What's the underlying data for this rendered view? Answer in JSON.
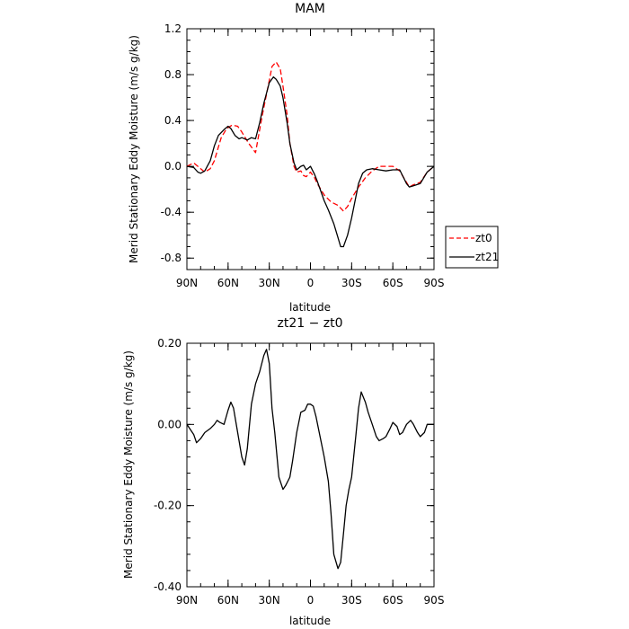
{
  "chart_data": [
    {
      "type": "line",
      "title": "MAM",
      "xlabel": "latitude",
      "ylabel": "Merid Stationary Eddy Moisture (m/s g/kg)",
      "xlim": [
        90,
        -90
      ],
      "ylim": [
        -0.9,
        1.2
      ],
      "xticks": [
        90,
        60,
        30,
        0,
        -30,
        -60,
        -90
      ],
      "xtick_labels": [
        "90N",
        "60N",
        "30N",
        "0",
        "30S",
        "60S",
        "90S"
      ],
      "yticks": [
        -0.8,
        -0.4,
        0.0,
        0.4,
        0.8,
        1.2
      ],
      "ytick_labels": [
        "-0.8",
        "-0.4",
        "0.0",
        "0.4",
        "0.8",
        "1.2"
      ],
      "legend_position": "right-outside-bottom",
      "series": [
        {
          "name": "zt0",
          "color": "#ff0000",
          "dash": "dashed",
          "x": [
            90,
            85,
            82,
            80,
            77,
            73,
            70,
            67,
            65,
            61,
            57,
            53,
            50,
            45,
            40,
            35,
            30,
            28,
            25,
            22,
            20,
            17,
            15,
            12,
            10,
            7,
            5,
            3,
            0,
            -3,
            -5,
            -10,
            -15,
            -20,
            -24,
            -27,
            -30,
            -35,
            -40,
            -45,
            -50,
            -55,
            -60,
            -65,
            -70,
            -72,
            -75,
            -80,
            -85,
            -90
          ],
          "y": [
            0.0,
            0.03,
            0.0,
            -0.02,
            -0.05,
            -0.02,
            0.05,
            0.17,
            0.25,
            0.33,
            0.36,
            0.35,
            0.3,
            0.2,
            0.12,
            0.45,
            0.75,
            0.87,
            0.91,
            0.85,
            0.7,
            0.45,
            0.2,
            0.0,
            -0.05,
            -0.04,
            -0.08,
            -0.09,
            -0.05,
            -0.1,
            -0.15,
            -0.25,
            -0.31,
            -0.34,
            -0.39,
            -0.35,
            -0.28,
            -0.18,
            -0.1,
            -0.04,
            0.0,
            0.0,
            0.0,
            -0.04,
            -0.14,
            -0.18,
            -0.16,
            -0.14,
            -0.05,
            0.0
          ]
        },
        {
          "name": "zt21",
          "color": "#000000",
          "dash": "solid",
          "x": [
            90,
            85,
            82,
            80,
            77,
            73,
            70,
            67,
            63,
            60,
            58,
            55,
            52,
            50,
            46,
            43,
            40,
            37,
            34,
            30,
            27,
            25,
            22,
            20,
            17,
            15,
            12,
            10,
            7,
            5,
            3,
            0,
            -3,
            -5,
            -10,
            -13,
            -17,
            -20,
            -22,
            -24,
            -27,
            -30,
            -35,
            -38,
            -41,
            -45,
            -50,
            -55,
            -60,
            -65,
            -70,
            -72,
            -75,
            -80,
            -85,
            -90
          ],
          "y": [
            0.0,
            -0.01,
            -0.05,
            -0.06,
            -0.04,
            0.05,
            0.18,
            0.27,
            0.32,
            0.35,
            0.33,
            0.27,
            0.24,
            0.25,
            0.23,
            0.25,
            0.24,
            0.38,
            0.55,
            0.73,
            0.78,
            0.76,
            0.7,
            0.6,
            0.38,
            0.2,
            0.03,
            -0.03,
            0.0,
            0.01,
            -0.03,
            0.0,
            -0.07,
            -0.13,
            -0.3,
            -0.38,
            -0.5,
            -0.62,
            -0.7,
            -0.7,
            -0.6,
            -0.45,
            -0.15,
            -0.06,
            -0.03,
            -0.02,
            -0.03,
            -0.04,
            -0.03,
            -0.03,
            -0.15,
            -0.18,
            -0.17,
            -0.15,
            -0.05,
            0.0
          ]
        }
      ]
    },
    {
      "type": "line",
      "title": "zt21 − zt0",
      "xlabel": "latitude",
      "ylabel": "Merid Stationary Eddy Moisture (m/s g/kg)",
      "xlim": [
        90,
        -90
      ],
      "ylim": [
        -0.4,
        0.2
      ],
      "xticks": [
        90,
        60,
        30,
        0,
        -30,
        -60,
        -90
      ],
      "xtick_labels": [
        "90N",
        "60N",
        "30N",
        "0",
        "30S",
        "60S",
        "90S"
      ],
      "yticks": [
        -0.4,
        -0.2,
        0.0,
        0.2
      ],
      "ytick_labels": [
        "-0.40",
        "-0.20",
        "0.00",
        "0.20"
      ],
      "series": [
        {
          "name": "zt21 - zt0",
          "color": "#000000",
          "dash": "solid",
          "x": [
            90,
            88,
            85,
            83,
            80,
            77,
            73,
            70,
            68,
            66,
            63,
            60,
            58,
            56,
            53,
            50,
            48,
            46,
            43,
            40,
            37,
            34,
            32,
            30,
            28,
            26,
            23,
            20,
            18,
            15,
            13,
            10,
            7,
            4,
            2,
            0,
            -2,
            -4,
            -7,
            -10,
            -13,
            -15,
            -17,
            -20,
            -22,
            -24,
            -26,
            -28,
            -30,
            -33,
            -35,
            -37,
            -40,
            -42,
            -45,
            -48,
            -50,
            -53,
            -55,
            -58,
            -60,
            -63,
            -65,
            -67,
            -70,
            -73,
            -75,
            -78,
            -80,
            -83,
            -85,
            -88,
            -90
          ],
          "y": [
            0.0,
            -0.01,
            -0.025,
            -0.045,
            -0.035,
            -0.02,
            -0.01,
            0.0,
            0.01,
            0.005,
            0.0,
            0.035,
            0.055,
            0.04,
            -0.02,
            -0.08,
            -0.1,
            -0.06,
            0.05,
            0.1,
            0.13,
            0.17,
            0.185,
            0.15,
            0.04,
            -0.02,
            -0.13,
            -0.16,
            -0.15,
            -0.13,
            -0.09,
            -0.02,
            0.03,
            0.035,
            0.05,
            0.05,
            0.045,
            0.02,
            -0.03,
            -0.08,
            -0.14,
            -0.22,
            -0.32,
            -0.355,
            -0.34,
            -0.27,
            -0.2,
            -0.16,
            -0.13,
            -0.03,
            0.04,
            0.08,
            0.055,
            0.03,
            0.0,
            -0.03,
            -0.04,
            -0.035,
            -0.03,
            -0.01,
            0.005,
            -0.005,
            -0.025,
            -0.02,
            0.0,
            0.01,
            0.0,
            -0.02,
            -0.03,
            -0.02,
            0.0,
            0.0,
            0.0
          ]
        }
      ]
    }
  ]
}
